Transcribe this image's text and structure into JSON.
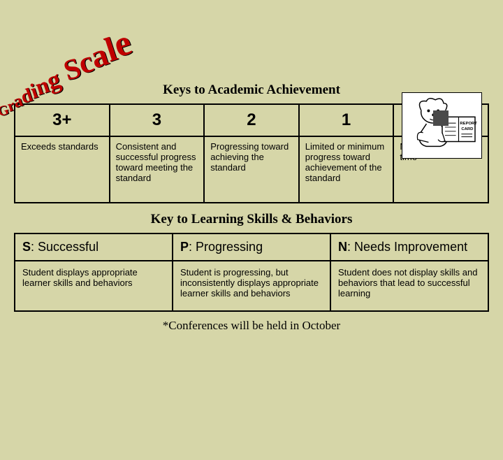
{
  "wordart": {
    "text": "Grading Scale",
    "color": "#c00000",
    "font_family": "Comic Sans MS",
    "rotation_deg": -18
  },
  "background_color": "#d6d6a8",
  "section1_title": "Keys to Academic Achievement",
  "academic_table": {
    "headers": [
      "3+",
      "3",
      "2",
      "1",
      ""
    ],
    "descriptions": [
      "Exceeds standards",
      "Consistent and successful progress toward meeting the standard",
      "Progressing toward achieving the standard",
      "Limited or minimum progress toward achievement of the standard",
      "Not assessed at this time"
    ],
    "header_fontsize": 24,
    "cell_fontsize": 13,
    "border_color": "#000000"
  },
  "section2_title": "Key to Learning Skills & Behaviors",
  "skills_table": {
    "headers": [
      {
        "key": "S",
        "label": "Successful"
      },
      {
        "key": "P",
        "label": "Progressing"
      },
      {
        "key": "N",
        "label": "Needs Improvement"
      }
    ],
    "descriptions": [
      "Student displays appropriate learner skills and behaviors",
      "Student is progressing, but inconsistently displays appropriate learner skills and behaviors",
      "Student does not display skills and behaviors that lead to successful learning"
    ],
    "header_fontsize": 18,
    "cell_fontsize": 13
  },
  "footnote": "*Conferences will be held in October",
  "report_card_label": "REPORT CARD"
}
